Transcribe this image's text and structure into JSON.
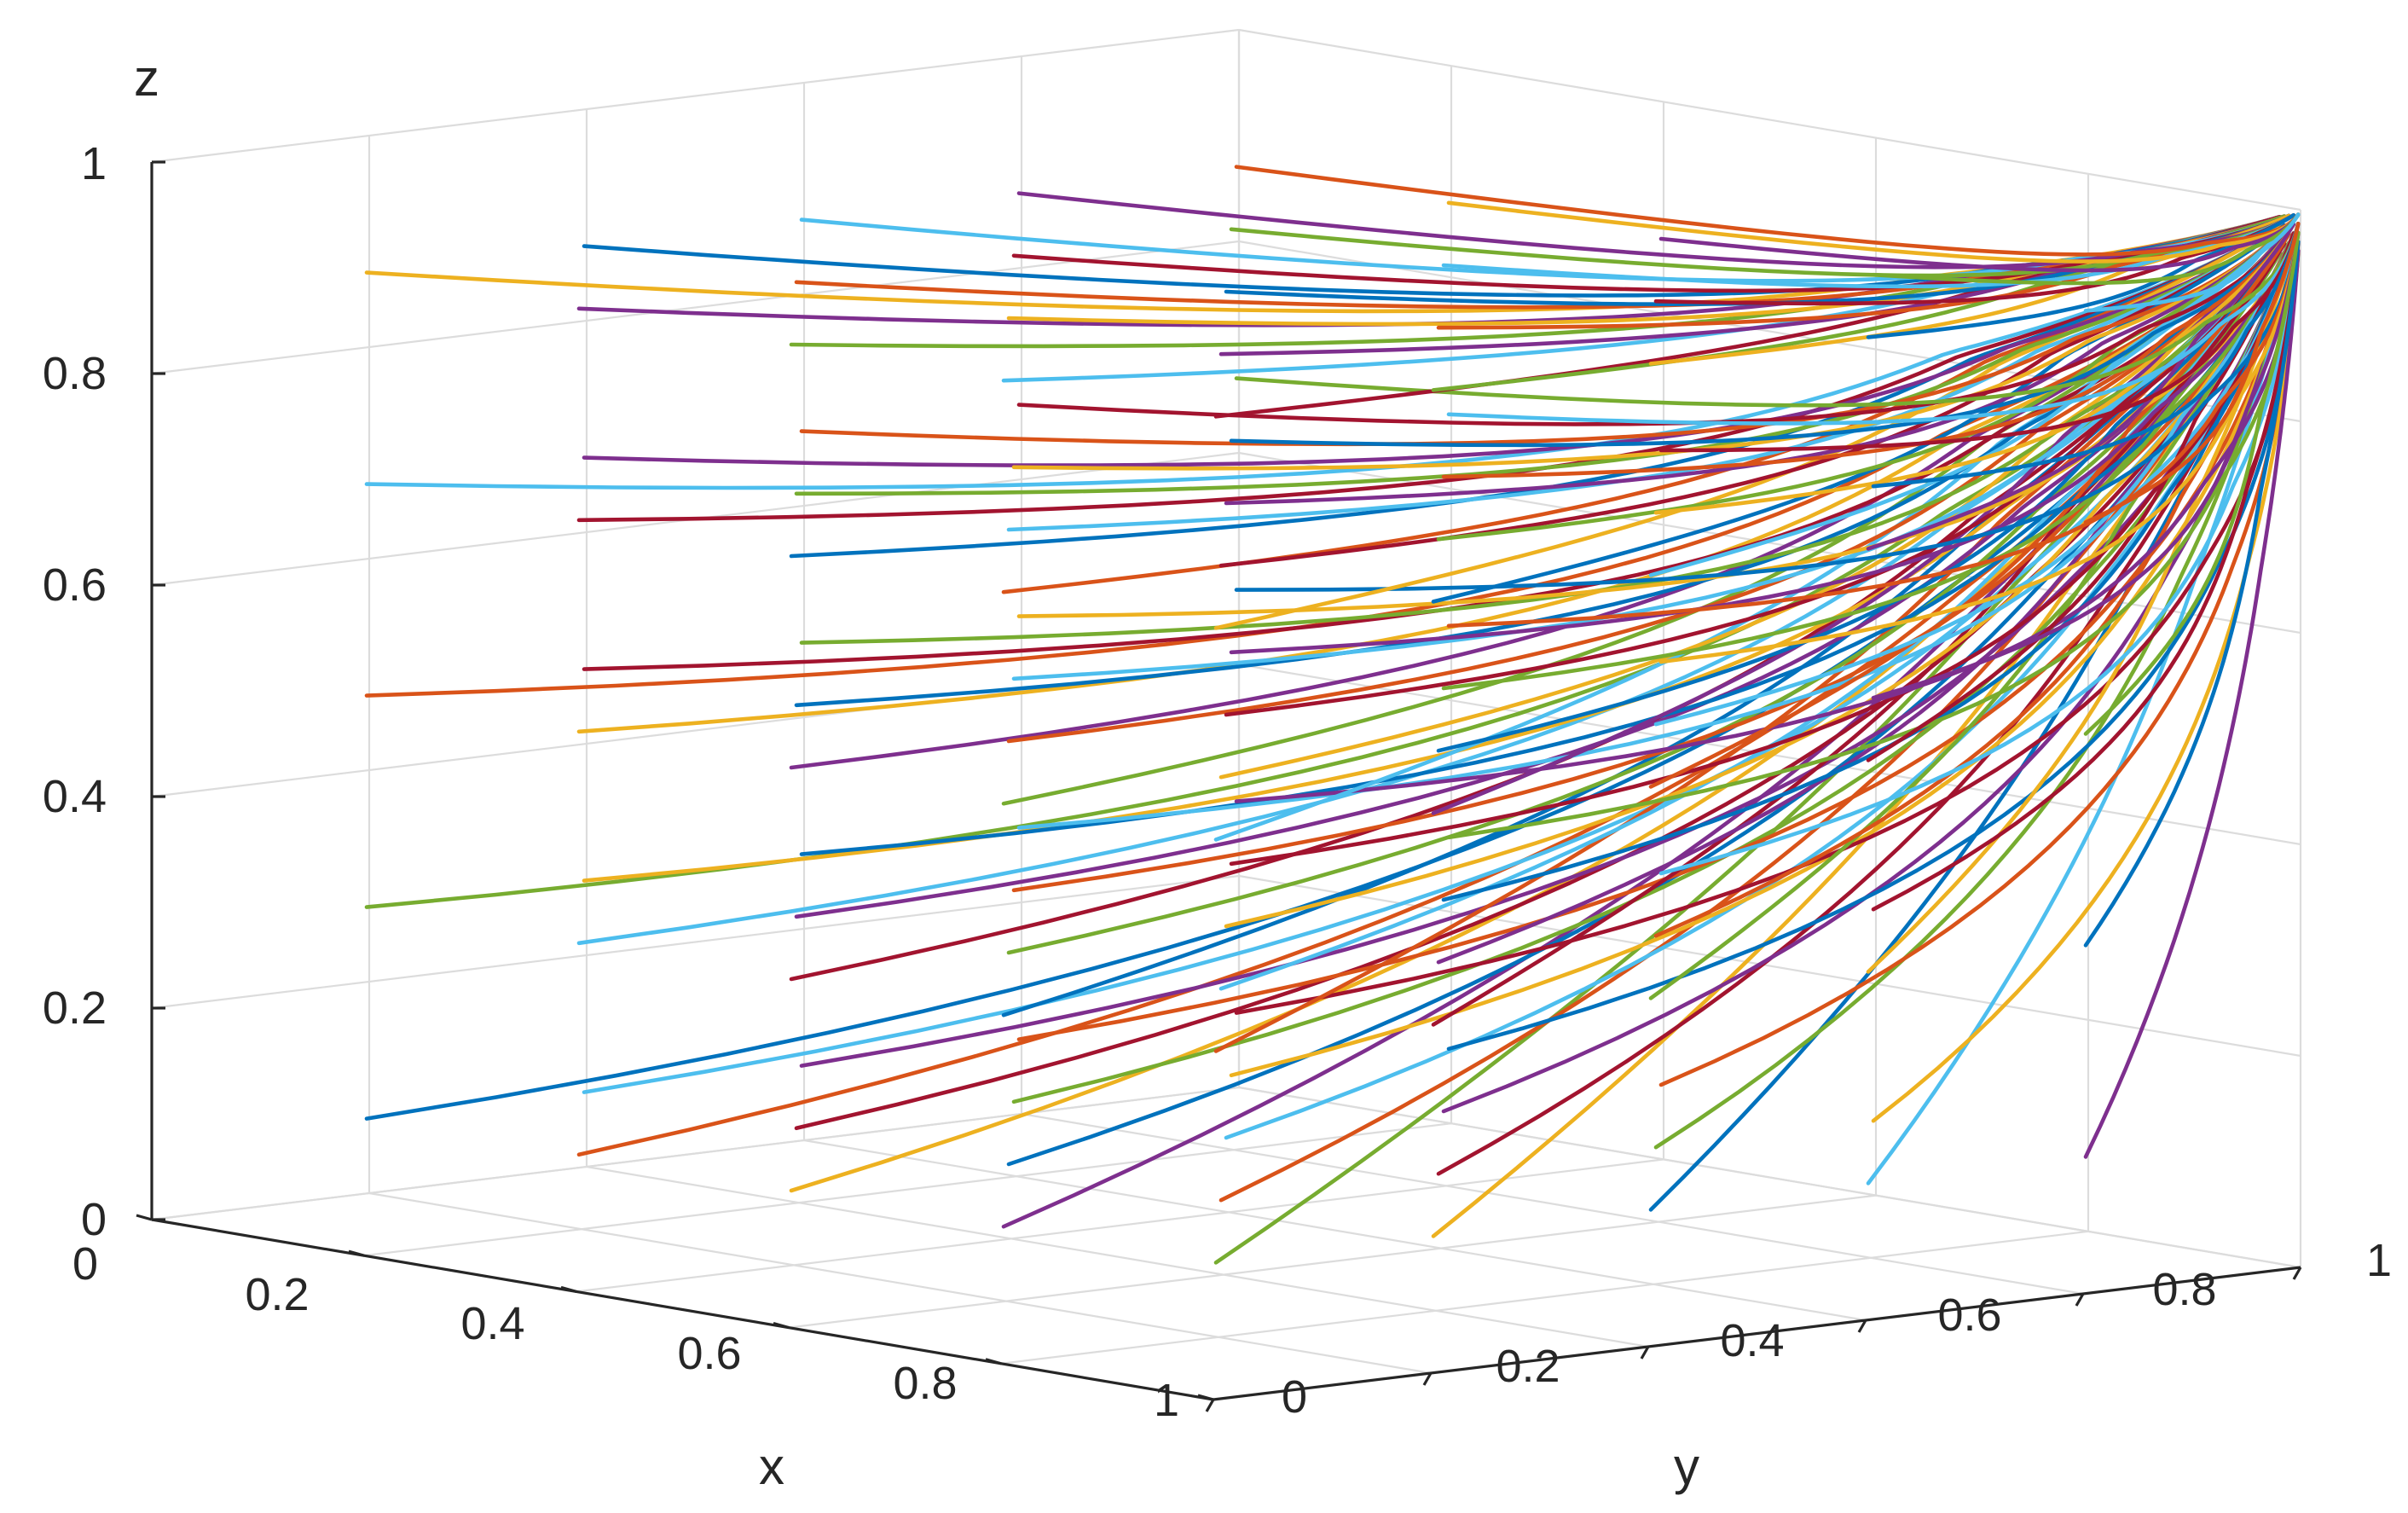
{
  "chart_data": {
    "type": "line",
    "view": "3d",
    "title": "",
    "xlabel": "x",
    "ylabel": "y",
    "zlabel": "z",
    "xlim": [
      0,
      1
    ],
    "ylim": [
      0,
      1
    ],
    "zlim": [
      0,
      1
    ],
    "x_ticks": [
      "0",
      "0.2",
      "0.4",
      "0.6",
      "0.8",
      "1"
    ],
    "y_ticks": [
      "0",
      "0.2",
      "0.4",
      "0.6",
      "0.8",
      "1"
    ],
    "z_ticks": [
      "0",
      "0.2",
      "0.4",
      "0.6",
      "0.8",
      "1"
    ],
    "grid": true,
    "legend": "none",
    "colors": [
      "#0072BD",
      "#D95319",
      "#EDB120",
      "#7E2F8E",
      "#77AC30",
      "#4DBEEE",
      "#A2142F"
    ],
    "trajectory_start_levels": {
      "x": [
        0.1,
        0.3,
        0.5,
        0.7,
        0.9
      ],
      "y": [
        0.1,
        0.3,
        0.5,
        0.7,
        0.9
      ],
      "z": [
        0.1,
        0.3,
        0.5,
        0.7,
        0.9
      ]
    },
    "end_point": [
      1,
      1,
      1
    ]
  }
}
